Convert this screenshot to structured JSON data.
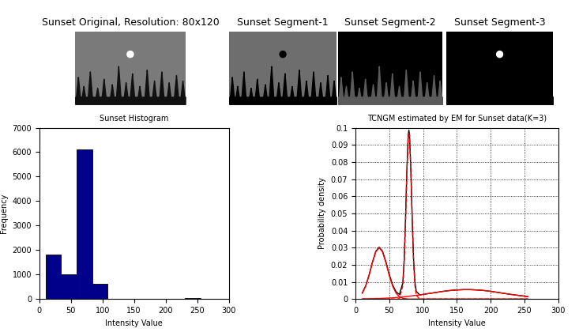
{
  "images": {
    "titles": [
      "Sunset Original, Resolution: 80x120",
      "Sunset Segment-1",
      "Sunset Segment-2",
      "Sunset Segment-3"
    ]
  },
  "chart_data": [
    {
      "type": "histogram",
      "title": "Sunset Histogram",
      "x_label": "Intensity Value",
      "y_label": "Frequency",
      "bins": [
        10,
        34.5,
        59,
        83.5,
        108,
        132.5,
        157,
        181.5,
        206,
        230.5,
        255
      ],
      "counts": [
        1820,
        1020,
        6120,
        620,
        10,
        5,
        5,
        5,
        10,
        50
      ],
      "color": "#00008b",
      "xlim": [
        0,
        300
      ],
      "xticks": [
        0,
        50,
        100,
        150,
        200,
        250,
        300
      ],
      "ylim": [
        0,
        7000
      ],
      "yticks": [
        0,
        1000,
        2000,
        3000,
        4000,
        5000,
        6000,
        7000
      ],
      "grid": false
    },
    {
      "type": "line",
      "title": "TCNGM estimated by EM for Sunset data(K=3)",
      "x_label": "Intensity Value",
      "y_label": "Probability density",
      "x": [
        10,
        15,
        20,
        25,
        30,
        35,
        40,
        45,
        50,
        55,
        60,
        65,
        70,
        72,
        74,
        76,
        78,
        79,
        80,
        82,
        84,
        86,
        88,
        90,
        95,
        100,
        110,
        120,
        130,
        140,
        150,
        160,
        170,
        180,
        190,
        200,
        210,
        220,
        230,
        240,
        250,
        255
      ],
      "series": [
        {
          "color": "#000000",
          "line_style": "solid",
          "values": [
            0.0035,
            0.0076,
            0.0139,
            0.0214,
            0.0278,
            0.0303,
            0.0279,
            0.0217,
            0.0143,
            0.0082,
            0.0043,
            0.0026,
            0.0093,
            0.0226,
            0.046,
            0.0748,
            0.0956,
            0.0986,
            0.0957,
            0.075,
            0.0463,
            0.023,
            0.0098,
            0.0044,
            0.0024,
            0.0027,
            0.0033,
            0.0039,
            0.0045,
            0.005,
            0.0053,
            0.0055,
            0.0055,
            0.0053,
            0.005,
            0.0045,
            0.0039,
            0.0033,
            0.0027,
            0.0022,
            0.0017,
            0.0014
          ]
        },
        {
          "color": "#ff0000",
          "line_style": "solid",
          "values": [
            0.0034,
            0.0075,
            0.0137,
            0.0212,
            0.0275,
            0.03,
            0.0275,
            0.0212,
            0.0137,
            0.0075,
            0.0034,
            0.0013,
            0.0004,
            0.0003,
            0.0002,
            0.0001,
            0,
            0,
            0,
            0,
            0,
            0,
            0,
            0,
            0,
            0,
            0,
            0,
            0,
            0,
            0,
            0,
            0,
            0,
            0,
            0,
            0,
            0,
            0,
            0,
            0,
            0
          ]
        },
        {
          "color": "#ff0000",
          "line_style": "solid",
          "values": [
            0.0001,
            0.0001,
            0.0002,
            0.0002,
            0.0003,
            0.0003,
            0.0004,
            0.0005,
            0.0006,
            0.0007,
            0.0009,
            0.0011,
            0.0012,
            0.0013,
            0.0014,
            0.0015,
            0.0016,
            0.0016,
            0.0017,
            0.0018,
            0.0019,
            0.002,
            0.0021,
            0.0022,
            0.0024,
            0.0027,
            0.0033,
            0.0039,
            0.0045,
            0.005,
            0.0053,
            0.0055,
            0.0055,
            0.0053,
            0.005,
            0.0045,
            0.0039,
            0.0033,
            0.0027,
            0.0022,
            0.0017,
            0.0014
          ]
        },
        {
          "color": "#ff0000",
          "line_style": "dashed",
          "values": [
            0,
            0,
            0,
            0,
            0,
            0,
            0,
            0,
            0,
            0,
            0,
            0.0002,
            0.0077,
            0.021,
            0.0444,
            0.0732,
            0.094,
            0.097,
            0.094,
            0.0732,
            0.0444,
            0.021,
            0.0077,
            0.0022,
            0,
            0,
            0,
            0,
            0,
            0,
            0,
            0,
            0,
            0,
            0,
            0,
            0,
            0,
            0,
            0,
            0,
            0
          ]
        }
      ],
      "xlim": [
        0,
        300
      ],
      "xticks": [
        0,
        50,
        100,
        150,
        200,
        250,
        300
      ],
      "ylim": [
        0,
        0.1
      ],
      "yticks": [
        0,
        0.01,
        0.02,
        0.03,
        0.04,
        0.05,
        0.06,
        0.07,
        0.08,
        0.09,
        0.1
      ],
      "grid": true
    }
  ]
}
